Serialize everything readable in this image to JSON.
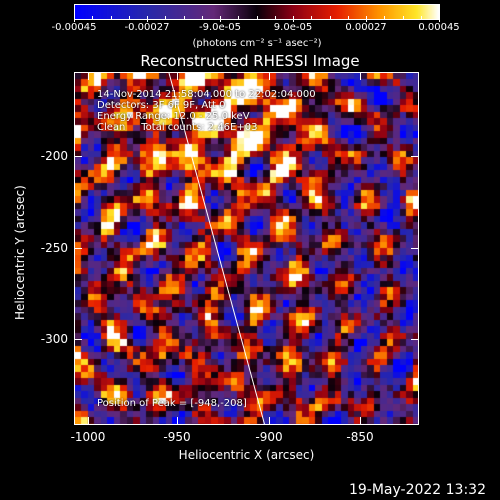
{
  "colorbar": {
    "tick_labels": [
      "-0.00045",
      "-0.00027",
      "-9.0e-05",
      "9.0e-05",
      "0.00027",
      "0.00045"
    ],
    "units_label": "(photons cm⁻² s⁻¹ asec⁻²)",
    "range": [
      -0.00045,
      0.00045
    ]
  },
  "chart_data": {
    "type": "heatmap",
    "title": "Reconstructed RHESSI Image",
    "xlabel": "Heliocentric X (arcsec)",
    "ylabel": "Heliocentric Y (arcsec)",
    "x_ticks": [
      "-1000",
      "-950",
      "-900",
      "-850"
    ],
    "y_ticks": [
      "-200",
      "-250",
      "-300"
    ],
    "xlim": [
      -1004,
      -815
    ],
    "ylim": [
      -349,
      -155
    ],
    "limb_line": true,
    "peak": [
      -948,
      -208
    ]
  },
  "annotations": {
    "time_range": "14-Nov-2014 21:58:04.000 to 22:02:04.000",
    "detectors": "Detectors: 3F 6F 9F, Att 0",
    "energy": "Energy Range: 12.0 - 25.0 keV",
    "clean": "Clean     Total counts: 2.46E+03",
    "peak_label": "Position of Peak = [-948,-208]"
  },
  "timestamp": "19-May-2022 13:32"
}
